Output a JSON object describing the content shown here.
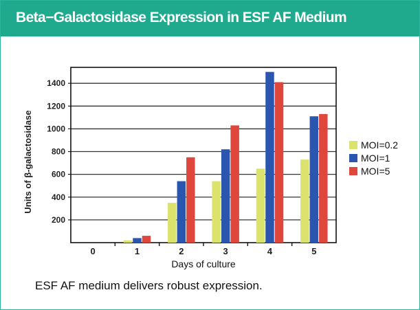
{
  "title": "Beta−Galactosidase Expression in ESF AF Medium",
  "caption": "ESF AF medium delivers robust expression.",
  "colors": {
    "banner": "#1faa8e",
    "border": "#2bb59a"
  },
  "chart_data": {
    "type": "bar",
    "title": "Beta−Galactosidase Expression in ESF AF Medium",
    "xlabel": "Days of culture",
    "ylabel": "Units of β-galactosidase",
    "categories": [
      "0",
      "1",
      "2",
      "3",
      "4",
      "5"
    ],
    "series": [
      {
        "name": "MOI=0.2",
        "color": "#dbe36c",
        "values": [
          0,
          20,
          350,
          540,
          650,
          730
        ]
      },
      {
        "name": "MOI=1",
        "color": "#2a56b0",
        "values": [
          0,
          40,
          540,
          820,
          1500,
          1110
        ]
      },
      {
        "name": "MOI=5",
        "color": "#e0473c",
        "values": [
          0,
          60,
          750,
          1030,
          1410,
          1130
        ]
      }
    ],
    "yticks": [
      200,
      400,
      600,
      800,
      1000,
      1200,
      1400
    ],
    "ylim": [
      0,
      1540
    ],
    "grid": true,
    "legend": "right"
  }
}
